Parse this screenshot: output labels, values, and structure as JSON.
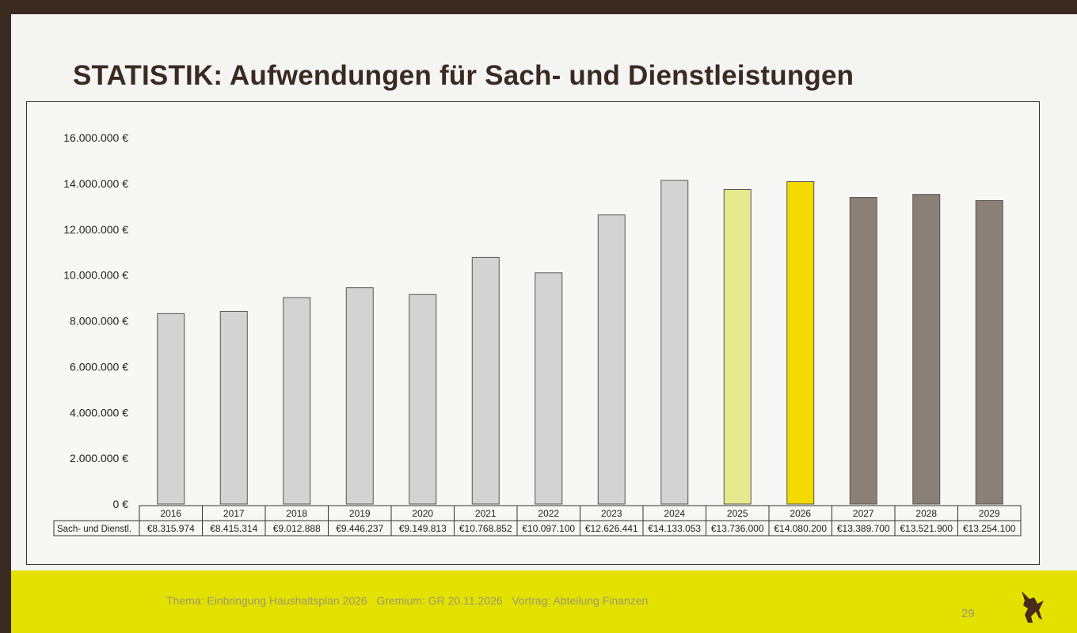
{
  "slide": {
    "title": "STATISTIK: Aufwendungen für Sach- und Dienstleistungen",
    "footer": "Thema: Einbringung Haushaltsplan 2026   Gremium: GR 20.11.2026   Vortrag: Abteilung Finanzen",
    "page_number": "29"
  },
  "chart_data": {
    "type": "bar",
    "title": "STATISTIK: Aufwendungen für Sach- und Dienstleistungen",
    "xlabel": "",
    "ylabel": "",
    "ylim": [
      0,
      16000000
    ],
    "yticks": [
      0,
      2000000,
      4000000,
      6000000,
      8000000,
      10000000,
      12000000,
      14000000,
      16000000
    ],
    "ytick_labels": [
      "0 €",
      "2.000.000 €",
      "4.000.000 €",
      "6.000.000 €",
      "8.000.000 €",
      "10.000.000 €",
      "12.000.000 €",
      "14.000.000 €",
      "16.000.000 €"
    ],
    "grid": false,
    "categories": [
      "2016",
      "2017",
      "2018",
      "2019",
      "2020",
      "2021",
      "2022",
      "2023",
      "2024",
      "2025",
      "2026",
      "2027",
      "2028",
      "2029"
    ],
    "series": [
      {
        "name": "Sach- und Dienstl.",
        "values": [
          8315974,
          8415314,
          9012888,
          9446237,
          9149813,
          10768852,
          10097100,
          12626441,
          14133053,
          13736000,
          14080200,
          13389700,
          13521900,
          13254100
        ],
        "value_labels": [
          "€8.315.974",
          "€8.415.314",
          "€9.012.888",
          "€9.446.237",
          "€9.149.813",
          "€10.768.852",
          "€10.097.100",
          "€12.626.441",
          "€14.133.053",
          "€13.736.000",
          "€14.080.200",
          "€13.389.700",
          "€13.521.900",
          "€13.254.100"
        ],
        "colors": [
          "#d3d3d3",
          "#d3d3d3",
          "#d3d3d3",
          "#d3d3d3",
          "#d3d3d3",
          "#d3d3d3",
          "#d3d3d3",
          "#d3d3d3",
          "#d3d3d3",
          "#e6e98e",
          "#f3da00",
          "#8b8075",
          "#8b8075",
          "#8b8075"
        ]
      }
    ]
  }
}
